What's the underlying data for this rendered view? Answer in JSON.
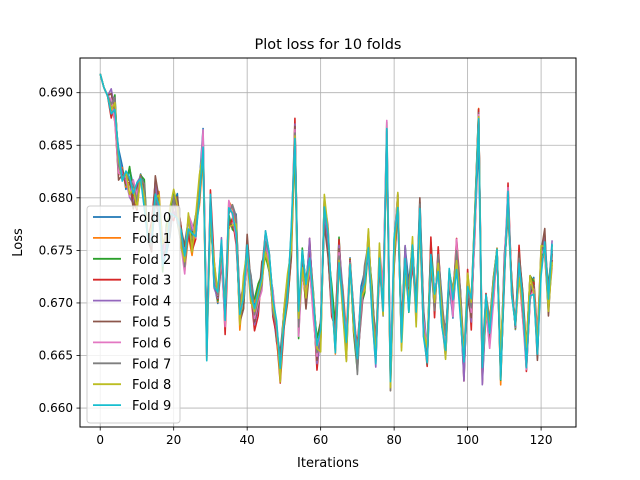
{
  "chart_data": {
    "type": "line",
    "title": "Plot loss for 10 folds",
    "xlabel": "Iterations",
    "ylabel": "Loss",
    "xlim": [
      -5.5,
      129.5
    ],
    "ylim": [
      0.6582,
      0.6933
    ],
    "xticks": [
      0,
      20,
      40,
      60,
      80,
      100,
      120
    ],
    "yticks": [
      0.66,
      0.665,
      0.67,
      0.675,
      0.68,
      0.685,
      0.69
    ],
    "ytick_format": 3,
    "grid": true,
    "legend_position": "lower-left",
    "x": [
      0,
      1,
      2,
      3,
      4,
      5,
      6,
      7,
      8,
      9,
      10,
      11,
      12,
      13,
      14,
      15,
      16,
      17,
      18,
      19,
      20,
      21,
      22,
      23,
      24,
      25,
      26,
      27,
      28,
      29,
      30,
      31,
      32,
      33,
      34,
      35,
      36,
      37,
      38,
      39,
      40,
      41,
      42,
      43,
      44,
      45,
      46,
      47,
      48,
      49,
      50,
      51,
      52,
      53,
      54,
      55,
      56,
      57,
      58,
      59,
      60,
      61,
      62,
      63,
      64,
      65,
      66,
      67,
      68,
      69,
      70,
      71,
      72,
      73,
      74,
      75,
      76,
      77,
      78,
      79,
      80,
      81,
      82,
      83,
      84,
      85,
      86,
      87,
      88,
      89,
      90,
      91,
      92,
      93,
      94,
      95,
      96,
      97,
      98,
      99,
      100,
      101,
      102,
      103,
      104,
      105,
      106,
      107,
      108,
      109,
      110,
      111,
      112,
      113,
      114,
      115,
      116,
      117,
      118,
      119,
      120,
      121,
      122,
      123
    ],
    "base_values": [
      0.6918,
      0.6905,
      0.6897,
      0.6892,
      0.6884,
      0.6832,
      0.6822,
      0.682,
      0.6815,
      0.6805,
      0.68,
      0.6822,
      0.6803,
      0.6752,
      0.6762,
      0.6806,
      0.679,
      0.6745,
      0.6762,
      0.6779,
      0.6795,
      0.6788,
      0.6765,
      0.6742,
      0.677,
      0.676,
      0.6774,
      0.6806,
      0.685,
      0.6658,
      0.6792,
      0.6725,
      0.6702,
      0.675,
      0.6688,
      0.6782,
      0.6785,
      0.677,
      0.669,
      0.671,
      0.675,
      0.6715,
      0.669,
      0.6705,
      0.6725,
      0.6755,
      0.674,
      0.67,
      0.6678,
      0.664,
      0.669,
      0.6714,
      0.6758,
      0.686,
      0.668,
      0.6738,
      0.671,
      0.6748,
      0.67,
      0.6652,
      0.6668,
      0.679,
      0.676,
      0.6704,
      0.6665,
      0.6748,
      0.6705,
      0.666,
      0.674,
      0.6685,
      0.6645,
      0.67,
      0.6725,
      0.6755,
      0.6701,
      0.665,
      0.6742,
      0.67,
      0.686,
      0.663,
      0.675,
      0.68,
      0.667,
      0.674,
      0.6705,
      0.675,
      0.669,
      0.6785,
      0.668,
      0.665,
      0.6745,
      0.67,
      0.674,
      0.669,
      0.666,
      0.673,
      0.67,
      0.6745,
      0.67,
      0.664,
      0.672,
      0.6692,
      0.6778,
      0.687,
      0.6635,
      0.67,
      0.6672,
      0.671,
      0.6745,
      0.6638,
      0.6732,
      0.6798,
      0.672,
      0.6668,
      0.674,
      0.67,
      0.665,
      0.672,
      0.6712,
      0.666,
      0.674,
      0.6755,
      0.67,
      0.6748
    ],
    "series": [
      {
        "name": "Fold 0",
        "color": "#1f77b4",
        "seed": 1,
        "amp": 0.0016
      },
      {
        "name": "Fold 1",
        "color": "#ff7f0e",
        "seed": 2,
        "amp": 0.0016
      },
      {
        "name": "Fold 2",
        "color": "#2ca02c",
        "seed": 3,
        "amp": 0.0016
      },
      {
        "name": "Fold 3",
        "color": "#d62728",
        "seed": 4,
        "amp": 0.0018
      },
      {
        "name": "Fold 4",
        "color": "#9467bd",
        "seed": 5,
        "amp": 0.0015
      },
      {
        "name": "Fold 5",
        "color": "#8c564b",
        "seed": 6,
        "amp": 0.0016
      },
      {
        "name": "Fold 6",
        "color": "#e377c2",
        "seed": 7,
        "amp": 0.0016
      },
      {
        "name": "Fold 7",
        "color": "#7f7f7f",
        "seed": 8,
        "amp": 0.0014
      },
      {
        "name": "Fold 8",
        "color": "#bcbd22",
        "seed": 9,
        "amp": 0.0016
      },
      {
        "name": "Fold 9",
        "color": "#17becf",
        "seed": 10,
        "amp": 0.0014
      }
    ]
  }
}
